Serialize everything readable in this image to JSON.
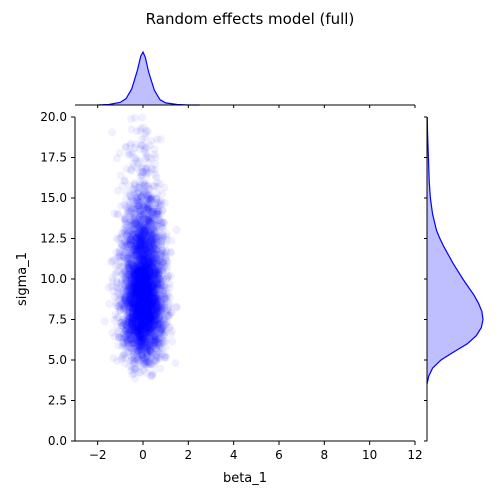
{
  "chart_data": {
    "type": "scatter",
    "title": "Random effects model (full)",
    "xlabel": "beta_1",
    "ylabel": "sigma_1",
    "xlim": [
      -3,
      12
    ],
    "ylim": [
      0,
      20
    ],
    "xticks": [
      -2,
      0,
      2,
      4,
      6,
      8,
      10,
      12
    ],
    "yticks": [
      0.0,
      2.5,
      5.0,
      7.5,
      10.0,
      12.5,
      15.0,
      17.5,
      20.0
    ],
    "xtick_labels": [
      "−2",
      "0",
      "2",
      "4",
      "6",
      "8",
      "10",
      "12"
    ],
    "ytick_labels": [
      "0.0",
      "2.5",
      "5.0",
      "7.5",
      "10.0",
      "12.5",
      "15.0",
      "17.5",
      "20.0"
    ],
    "grid": false,
    "point_color": "#0000ff",
    "point_alpha": 0.06,
    "joint_distribution": {
      "center_x": 0.0,
      "sd_x": 0.45,
      "mode_y": 7.8,
      "y_range_observed": [
        3.8,
        20.0
      ],
      "x_range_observed": [
        -1.7,
        2.5
      ],
      "point_count_estimate": 4000
    },
    "marginal_x_kde": {
      "x": [
        -2.0,
        -1.5,
        -1.0,
        -0.75,
        -0.5,
        -0.25,
        -0.1,
        0.0,
        0.1,
        0.25,
        0.5,
        0.75,
        1.0,
        1.5,
        2.0,
        2.5
      ],
      "density": [
        0.0,
        0.01,
        0.05,
        0.12,
        0.3,
        0.65,
        0.92,
        1.0,
        0.9,
        0.62,
        0.28,
        0.1,
        0.04,
        0.01,
        0.0,
        0.0
      ]
    },
    "marginal_y_kde": {
      "y": [
        3.5,
        4.0,
        4.5,
        5.0,
        5.5,
        6.0,
        6.5,
        7.0,
        7.5,
        8.0,
        8.5,
        9.0,
        9.5,
        10.0,
        10.5,
        11.0,
        11.5,
        12.0,
        12.5,
        13.0,
        14.0,
        15.0,
        16.0,
        17.0,
        18.0,
        19.0,
        20.0
      ],
      "density": [
        0.0,
        0.03,
        0.1,
        0.25,
        0.48,
        0.72,
        0.88,
        0.97,
        1.0,
        0.98,
        0.92,
        0.84,
        0.74,
        0.64,
        0.55,
        0.46,
        0.38,
        0.3,
        0.23,
        0.17,
        0.1,
        0.06,
        0.04,
        0.03,
        0.02,
        0.01,
        0.005
      ]
    },
    "kde_fill_color": "#bfbfff",
    "kde_line_color": "#0000ff"
  }
}
